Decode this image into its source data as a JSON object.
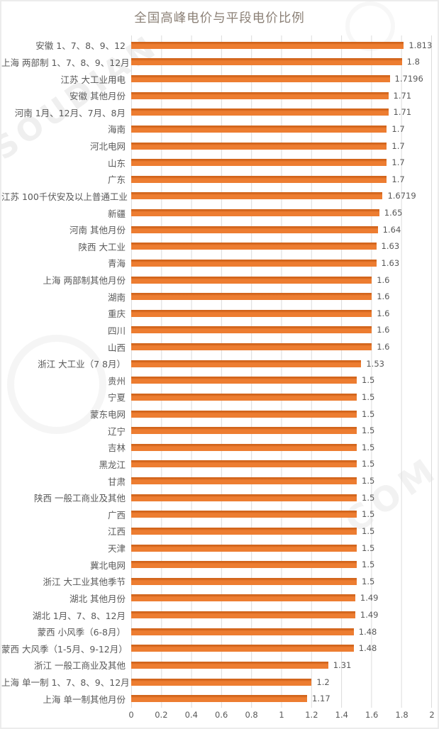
{
  "title": "全国高峰电价与平段电价比例",
  "colors": {
    "bar": "#ED7D31",
    "bar_top_edge": "#D2651C",
    "title_text": "#8C8177",
    "axis_text": "#595959",
    "gridline": "#DCDCDC",
    "background": "#FFFFFF"
  },
  "watermark": {
    "top_left_text": "SOUDIAN",
    "bottom_right_text": "COM"
  },
  "chart_data": {
    "type": "bar",
    "orientation": "horizontal",
    "title": "全国高峰电价与平段电价比例",
    "xlabel": "",
    "ylabel": "",
    "xlim": [
      0,
      2
    ],
    "grid": "vertical",
    "legend": "none",
    "x_ticks": [
      "0",
      "0.2",
      "0.4",
      "0.6",
      "0.8",
      "1",
      "1.2",
      "1.4",
      "1.6",
      "1.8",
      "2"
    ],
    "categories": [
      "安徽 1、7、8、9、12",
      "上海 两部制 1、7、8、9、12月",
      "江苏 大工业用电",
      "安徽 其他月份",
      "河南 1月、12月、7月、8月",
      "海南",
      "河北电网",
      "山东",
      "广东",
      "江苏 100千伏安及以上普通工业",
      "新疆",
      "河南 其他月份",
      "陕西 大工业",
      "青海",
      "上海 两部制其他月份",
      "湖南",
      "重庆",
      "四川",
      "山西",
      "浙江 大工业（7 8月）",
      "贵州",
      "宁夏",
      "蒙东电网",
      "辽宁",
      "吉林",
      "黑龙江",
      "甘肃",
      "陕西 一般工商业及其他",
      "广西",
      "江西",
      "天津",
      "冀北电网",
      "浙江 大工业其他季节",
      "湖北 其他月份",
      "湖北 1月、7、8、12月",
      "蒙西 小风季（6-8月）",
      "蒙西 大风季（1-5月、9-12月）",
      "浙江 一般工商业及其他",
      "上海 单一制 1、7、8、9、12月",
      "上海 单一制其他月份"
    ],
    "values": [
      1.813,
      1.8,
      1.7196,
      1.71,
      1.71,
      1.7,
      1.7,
      1.7,
      1.7,
      1.6719,
      1.65,
      1.64,
      1.63,
      1.63,
      1.6,
      1.6,
      1.6,
      1.6,
      1.6,
      1.53,
      1.5,
      1.5,
      1.5,
      1.5,
      1.5,
      1.5,
      1.5,
      1.5,
      1.5,
      1.5,
      1.5,
      1.5,
      1.5,
      1.49,
      1.49,
      1.48,
      1.48,
      1.31,
      1.2,
      1.17
    ],
    "value_labels": [
      "1.813",
      "1.8",
      "1.7196",
      "1.71",
      "1.71",
      "1.7",
      "1.7",
      "1.7",
      "1.7",
      "1.6719",
      "1.65",
      "1.64",
      "1.63",
      "1.63",
      "1.6",
      "1.6",
      "1.6",
      "1.6",
      "1.6",
      "1.53",
      "1.5",
      "1.5",
      "1.5",
      "1.5",
      "1.5",
      "1.5",
      "1.5",
      "1.5",
      "1.5",
      "1.5",
      "1.5",
      "1.5",
      "1.5",
      "1.49",
      "1.49",
      "1.48",
      "1.48",
      "1.31",
      "1.2",
      "1.17"
    ]
  }
}
